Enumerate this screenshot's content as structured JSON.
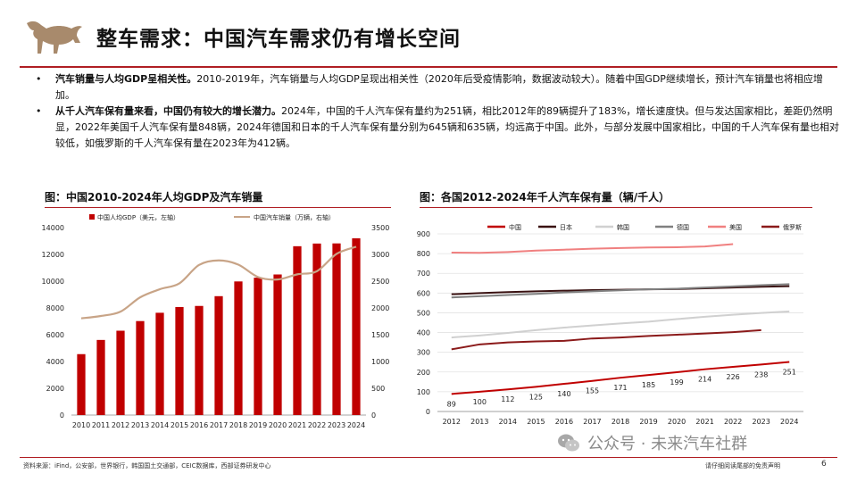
{
  "header": {
    "title": "整车需求：中国汽车需求仍有增长空间"
  },
  "bullets": [
    {
      "bold": "汽车销量与人均GDP呈相关性。",
      "text": "2010-2019年，汽车销量与人均GDP呈现出相关性（2020年后受疫情影响，数据波动较大）。随着中国GDP继续增长，预计汽车销量也将相应增加。"
    },
    {
      "bold": "从千人汽车保有量来看，中国仍有较大的增长潜力。",
      "text": "2024年，中国的千人汽车保有量约为251辆，相比2012年的89辆提升了183%，增长速度快。但与发达国家相比，差距仍然明显，2022年美国千人汽车保有量848辆，2024年德国和日本的千人汽车保有量分别为645辆和635辆，均远高于中国。此外，与部分发展中国家相比，中国的千人汽车保有量也相对较低，如俄罗斯的千人汽车保有量在2023年为412辆。"
    }
  ],
  "footer": {
    "source": "资料来源：iFind，公安部，世界银行，韩国国土交通部，CEIC数据库，西部证券研发中心",
    "watermark": "公众号 · 未来汽车社群",
    "disclaimer": "请仔细阅读尾部的免责声明",
    "page": "6"
  },
  "colors": {
    "accent": "#b01e23",
    "bar": "#c00000",
    "sales_line": "#c8a487"
  },
  "chart_data": [
    {
      "type": "bar",
      "title": "图：中国2010-2024年人均GDP及汽车销量",
      "categories": [
        "2010",
        "2011",
        "2012",
        "2013",
        "2014",
        "2015",
        "2016",
        "2017",
        "2018",
        "2019",
        "2020",
        "2021",
        "2022",
        "2023",
        "2024"
      ],
      "series": [
        {
          "name": "中国人均GDP（美元，左轴）",
          "kind": "bar",
          "axis": "left",
          "color": "#c00000",
          "values": [
            4550,
            5610,
            6300,
            7020,
            7640,
            8070,
            8150,
            8880,
            9980,
            10260,
            10500,
            12610,
            12810,
            12820,
            13200
          ]
        },
        {
          "name": "中国汽车销量（万辆，右轴）",
          "kind": "line",
          "axis": "right",
          "color": "#c8a487",
          "values": [
            1806,
            1850,
            1931,
            2198,
            2349,
            2460,
            2803,
            2888,
            2808,
            2577,
            2531,
            2627,
            2686,
            3009,
            3144
          ]
        }
      ],
      "left_axis": {
        "min": 0,
        "max": 14000,
        "ticks": [
          "0",
          "2000",
          "4000",
          "6000",
          "8000",
          "10000",
          "12000",
          "14000"
        ]
      },
      "right_axis": {
        "min": 0,
        "max": 3500,
        "ticks": [
          "0",
          "500",
          "1000",
          "1500",
          "2000",
          "2500",
          "3000",
          "3500"
        ]
      },
      "legend_position": "top",
      "grid": false
    },
    {
      "type": "line",
      "title": "图：各国2012-2024年千人汽车保有量（辆/千人）",
      "x": [
        "2012",
        "2013",
        "2014",
        "2015",
        "2016",
        "2017",
        "2018",
        "2019",
        "2020",
        "2021",
        "2022",
        "2023",
        "2024"
      ],
      "series": [
        {
          "name": "中国",
          "color": "#c00000",
          "values": [
            89,
            100,
            112,
            125,
            140,
            155,
            171,
            185,
            199,
            214,
            226,
            238,
            251
          ],
          "labels": [
            "89",
            "100",
            "112",
            "125",
            "140",
            "155",
            "171",
            "185",
            "199",
            "214",
            "226",
            "238",
            "251"
          ]
        },
        {
          "name": "日本",
          "color": "#3a1212",
          "values": [
            594,
            600,
            605,
            609,
            612,
            615,
            617,
            619,
            620,
            624,
            628,
            632,
            635
          ]
        },
        {
          "name": "韩国",
          "color": "#d0d0d0",
          "values": [
            375,
            385,
            398,
            412,
            425,
            436,
            446,
            455,
            468,
            480,
            490,
            499,
            507
          ]
        },
        {
          "name": "德国",
          "color": "#808080",
          "values": [
            578,
            584,
            590,
            596,
            603,
            609,
            614,
            619,
            622,
            628,
            634,
            640,
            645
          ]
        },
        {
          "name": "美国",
          "color": "#f08080",
          "values": [
            805,
            804,
            808,
            815,
            820,
            825,
            828,
            831,
            832,
            836,
            848,
            null,
            null
          ]
        },
        {
          "name": "俄罗斯",
          "color": "#8b1a1a",
          "values": [
            315,
            340,
            350,
            355,
            358,
            370,
            375,
            383,
            389,
            395,
            402,
            412,
            null
          ]
        }
      ],
      "y_axis": {
        "min": 0,
        "max": 900,
        "ticks": [
          "0",
          "100",
          "200",
          "300",
          "400",
          "500",
          "600",
          "700",
          "800",
          "900"
        ]
      },
      "legend_position": "top",
      "grid": true
    }
  ]
}
